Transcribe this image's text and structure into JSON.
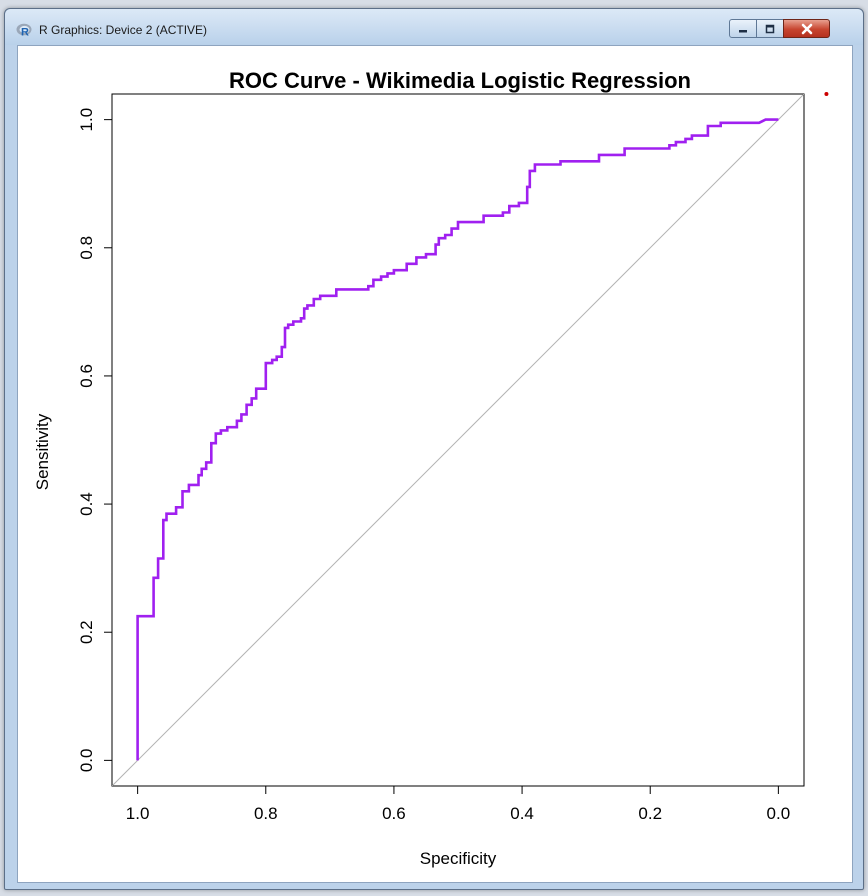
{
  "window": {
    "title": "R Graphics: Device 2 (ACTIVE)"
  },
  "chart_data": {
    "type": "line",
    "title": "ROC Curve - Wikimedia Logistic Regression",
    "xlabel": "Specificity",
    "ylabel": "Sensitivity",
    "x_reversed": true,
    "xlim": [
      1.04,
      -0.04
    ],
    "ylim": [
      -0.04,
      1.04
    ],
    "xticks": [
      1.0,
      0.8,
      0.6,
      0.4,
      0.2,
      0.0
    ],
    "xtick_labels": [
      "1.0",
      "0.8",
      "0.6",
      "0.4",
      "0.2",
      "0.0"
    ],
    "yticks": [
      0.0,
      0.2,
      0.4,
      0.6,
      0.8,
      1.0
    ],
    "ytick_labels": [
      "0.0",
      "0.2",
      "0.4",
      "0.6",
      "0.8",
      "1.0"
    ],
    "grid": false,
    "colors": {
      "roc": "#a020f0",
      "reference": "#b3b3b3",
      "marker": "#cc0000"
    },
    "reference_line": {
      "from": [
        1.0,
        0.0
      ],
      "to": [
        0.0,
        1.0
      ]
    },
    "series": [
      {
        "values": [
          [
            1.0,
            0.0
          ],
          [
            1.0,
            0.225
          ],
          [
            0.975,
            0.225
          ],
          [
            0.975,
            0.285
          ],
          [
            0.968,
            0.285
          ],
          [
            0.968,
            0.315
          ],
          [
            0.96,
            0.315
          ],
          [
            0.96,
            0.375
          ],
          [
            0.955,
            0.375
          ],
          [
            0.955,
            0.385
          ],
          [
            0.94,
            0.385
          ],
          [
            0.94,
            0.395
          ],
          [
            0.93,
            0.395
          ],
          [
            0.93,
            0.42
          ],
          [
            0.92,
            0.42
          ],
          [
            0.92,
            0.43
          ],
          [
            0.905,
            0.43
          ],
          [
            0.905,
            0.445
          ],
          [
            0.9,
            0.445
          ],
          [
            0.9,
            0.455
          ],
          [
            0.893,
            0.455
          ],
          [
            0.893,
            0.465
          ],
          [
            0.885,
            0.465
          ],
          [
            0.885,
            0.495
          ],
          [
            0.878,
            0.495
          ],
          [
            0.878,
            0.51
          ],
          [
            0.87,
            0.51
          ],
          [
            0.87,
            0.515
          ],
          [
            0.86,
            0.515
          ],
          [
            0.86,
            0.52
          ],
          [
            0.845,
            0.52
          ],
          [
            0.845,
            0.53
          ],
          [
            0.838,
            0.53
          ],
          [
            0.838,
            0.54
          ],
          [
            0.83,
            0.54
          ],
          [
            0.83,
            0.555
          ],
          [
            0.822,
            0.555
          ],
          [
            0.822,
            0.565
          ],
          [
            0.815,
            0.565
          ],
          [
            0.815,
            0.58
          ],
          [
            0.8,
            0.58
          ],
          [
            0.8,
            0.62
          ],
          [
            0.79,
            0.62
          ],
          [
            0.79,
            0.625
          ],
          [
            0.783,
            0.625
          ],
          [
            0.783,
            0.63
          ],
          [
            0.775,
            0.63
          ],
          [
            0.775,
            0.645
          ],
          [
            0.77,
            0.645
          ],
          [
            0.77,
            0.675
          ],
          [
            0.765,
            0.675
          ],
          [
            0.765,
            0.68
          ],
          [
            0.757,
            0.68
          ],
          [
            0.757,
            0.685
          ],
          [
            0.745,
            0.685
          ],
          [
            0.745,
            0.69
          ],
          [
            0.74,
            0.69
          ],
          [
            0.74,
            0.705
          ],
          [
            0.735,
            0.705
          ],
          [
            0.735,
            0.71
          ],
          [
            0.725,
            0.71
          ],
          [
            0.725,
            0.72
          ],
          [
            0.715,
            0.72
          ],
          [
            0.715,
            0.725
          ],
          [
            0.69,
            0.725
          ],
          [
            0.69,
            0.735
          ],
          [
            0.64,
            0.735
          ],
          [
            0.64,
            0.74
          ],
          [
            0.632,
            0.74
          ],
          [
            0.632,
            0.75
          ],
          [
            0.62,
            0.75
          ],
          [
            0.62,
            0.755
          ],
          [
            0.61,
            0.755
          ],
          [
            0.61,
            0.76
          ],
          [
            0.6,
            0.76
          ],
          [
            0.6,
            0.765
          ],
          [
            0.58,
            0.765
          ],
          [
            0.58,
            0.775
          ],
          [
            0.565,
            0.775
          ],
          [
            0.565,
            0.785
          ],
          [
            0.55,
            0.785
          ],
          [
            0.55,
            0.79
          ],
          [
            0.535,
            0.79
          ],
          [
            0.535,
            0.805
          ],
          [
            0.53,
            0.805
          ],
          [
            0.53,
            0.815
          ],
          [
            0.52,
            0.815
          ],
          [
            0.52,
            0.82
          ],
          [
            0.51,
            0.82
          ],
          [
            0.51,
            0.83
          ],
          [
            0.5,
            0.83
          ],
          [
            0.5,
            0.84
          ],
          [
            0.46,
            0.84
          ],
          [
            0.46,
            0.85
          ],
          [
            0.43,
            0.85
          ],
          [
            0.43,
            0.855
          ],
          [
            0.42,
            0.855
          ],
          [
            0.42,
            0.865
          ],
          [
            0.405,
            0.865
          ],
          [
            0.405,
            0.87
          ],
          [
            0.392,
            0.87
          ],
          [
            0.392,
            0.895
          ],
          [
            0.388,
            0.895
          ],
          [
            0.388,
            0.92
          ],
          [
            0.38,
            0.92
          ],
          [
            0.38,
            0.93
          ],
          [
            0.34,
            0.93
          ],
          [
            0.34,
            0.935
          ],
          [
            0.28,
            0.935
          ],
          [
            0.28,
            0.945
          ],
          [
            0.24,
            0.945
          ],
          [
            0.24,
            0.955
          ],
          [
            0.17,
            0.955
          ],
          [
            0.17,
            0.96
          ],
          [
            0.16,
            0.96
          ],
          [
            0.16,
            0.965
          ],
          [
            0.145,
            0.965
          ],
          [
            0.145,
            0.97
          ],
          [
            0.135,
            0.97
          ],
          [
            0.135,
            0.975
          ],
          [
            0.11,
            0.975
          ],
          [
            0.11,
            0.99
          ],
          [
            0.09,
            0.99
          ],
          [
            0.09,
            0.995
          ],
          [
            0.03,
            0.995
          ],
          [
            0.02,
            1.0
          ],
          [
            0.0,
            1.0
          ]
        ]
      }
    ],
    "extra_points": [
      {
        "x": -0.075,
        "y": 1.04
      }
    ]
  }
}
